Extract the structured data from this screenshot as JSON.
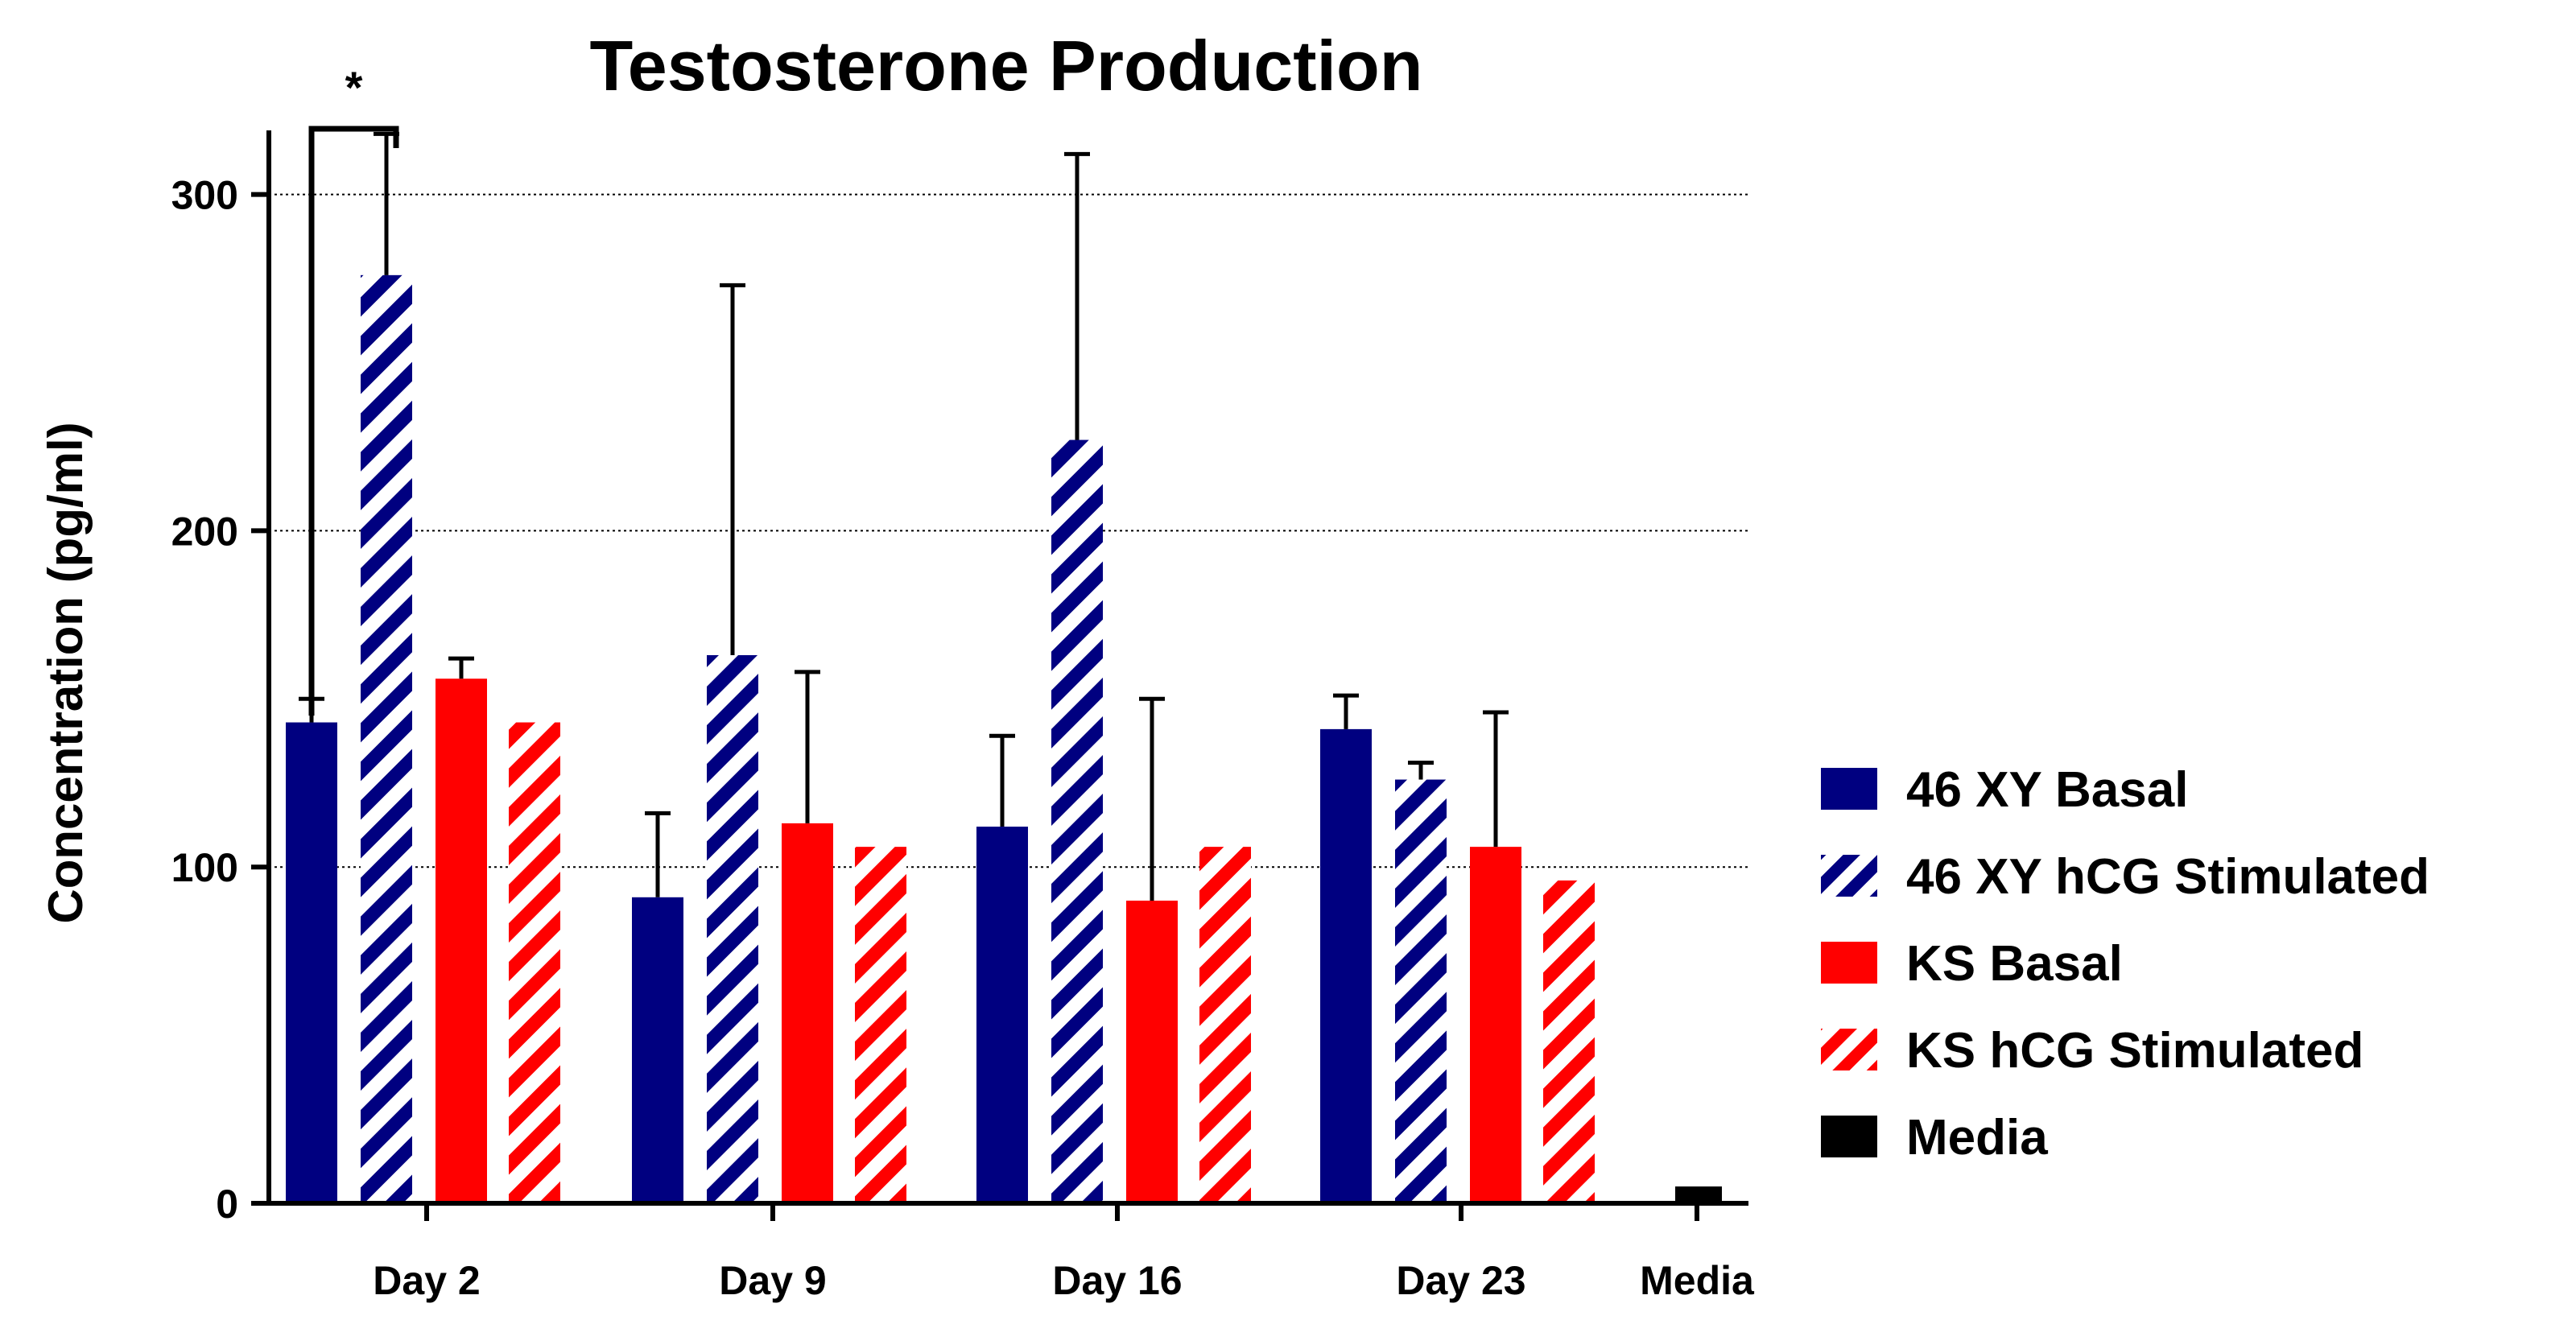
{
  "chart_data": {
    "type": "bar",
    "title": "Testosterone Production",
    "xlabel": "",
    "ylabel": "Concentration (pg/ml)",
    "ylim": [
      0,
      320
    ],
    "yticks": [
      0,
      100,
      200,
      300
    ],
    "ytick_labels": [
      "0",
      "100",
      "200",
      "300"
    ],
    "grid": "horizontal dotted at 100, 200, 300",
    "legend_position": "right",
    "categories": [
      "Day 2",
      "Day 9",
      "Day 16",
      "Day 23",
      "Media"
    ],
    "series": [
      {
        "name": "46 XY Basal",
        "color": "#000080",
        "pattern": "solid",
        "values": [
          143,
          91,
          112,
          141,
          null
        ],
        "error": [
          7,
          25,
          27,
          10,
          null
        ]
      },
      {
        "name": "46 XY hCG Stimulated",
        "color": "#000080",
        "pattern": "hatched",
        "values": [
          276,
          163,
          227,
          126,
          null
        ],
        "error": [
          42,
          110,
          85,
          5,
          null
        ]
      },
      {
        "name": "KS Basal",
        "color": "#ff0000",
        "pattern": "solid",
        "values": [
          156,
          113,
          90,
          106,
          null
        ],
        "error": [
          6,
          45,
          60,
          40,
          null
        ]
      },
      {
        "name": "KS hCG Stimulated",
        "color": "#ff0000",
        "pattern": "hatched",
        "values": [
          143,
          106,
          106,
          96,
          null
        ],
        "error": [
          null,
          null,
          null,
          null,
          null
        ]
      },
      {
        "name": "Media",
        "color": "#000000",
        "pattern": "solid",
        "values": [
          null,
          null,
          null,
          null,
          5
        ],
        "error": [
          null,
          null,
          null,
          null,
          null
        ]
      }
    ],
    "annotations": [
      {
        "text": "*",
        "between": [
          "46 XY Basal",
          "46 XY hCG Stimulated"
        ],
        "category": "Day 2"
      }
    ]
  }
}
